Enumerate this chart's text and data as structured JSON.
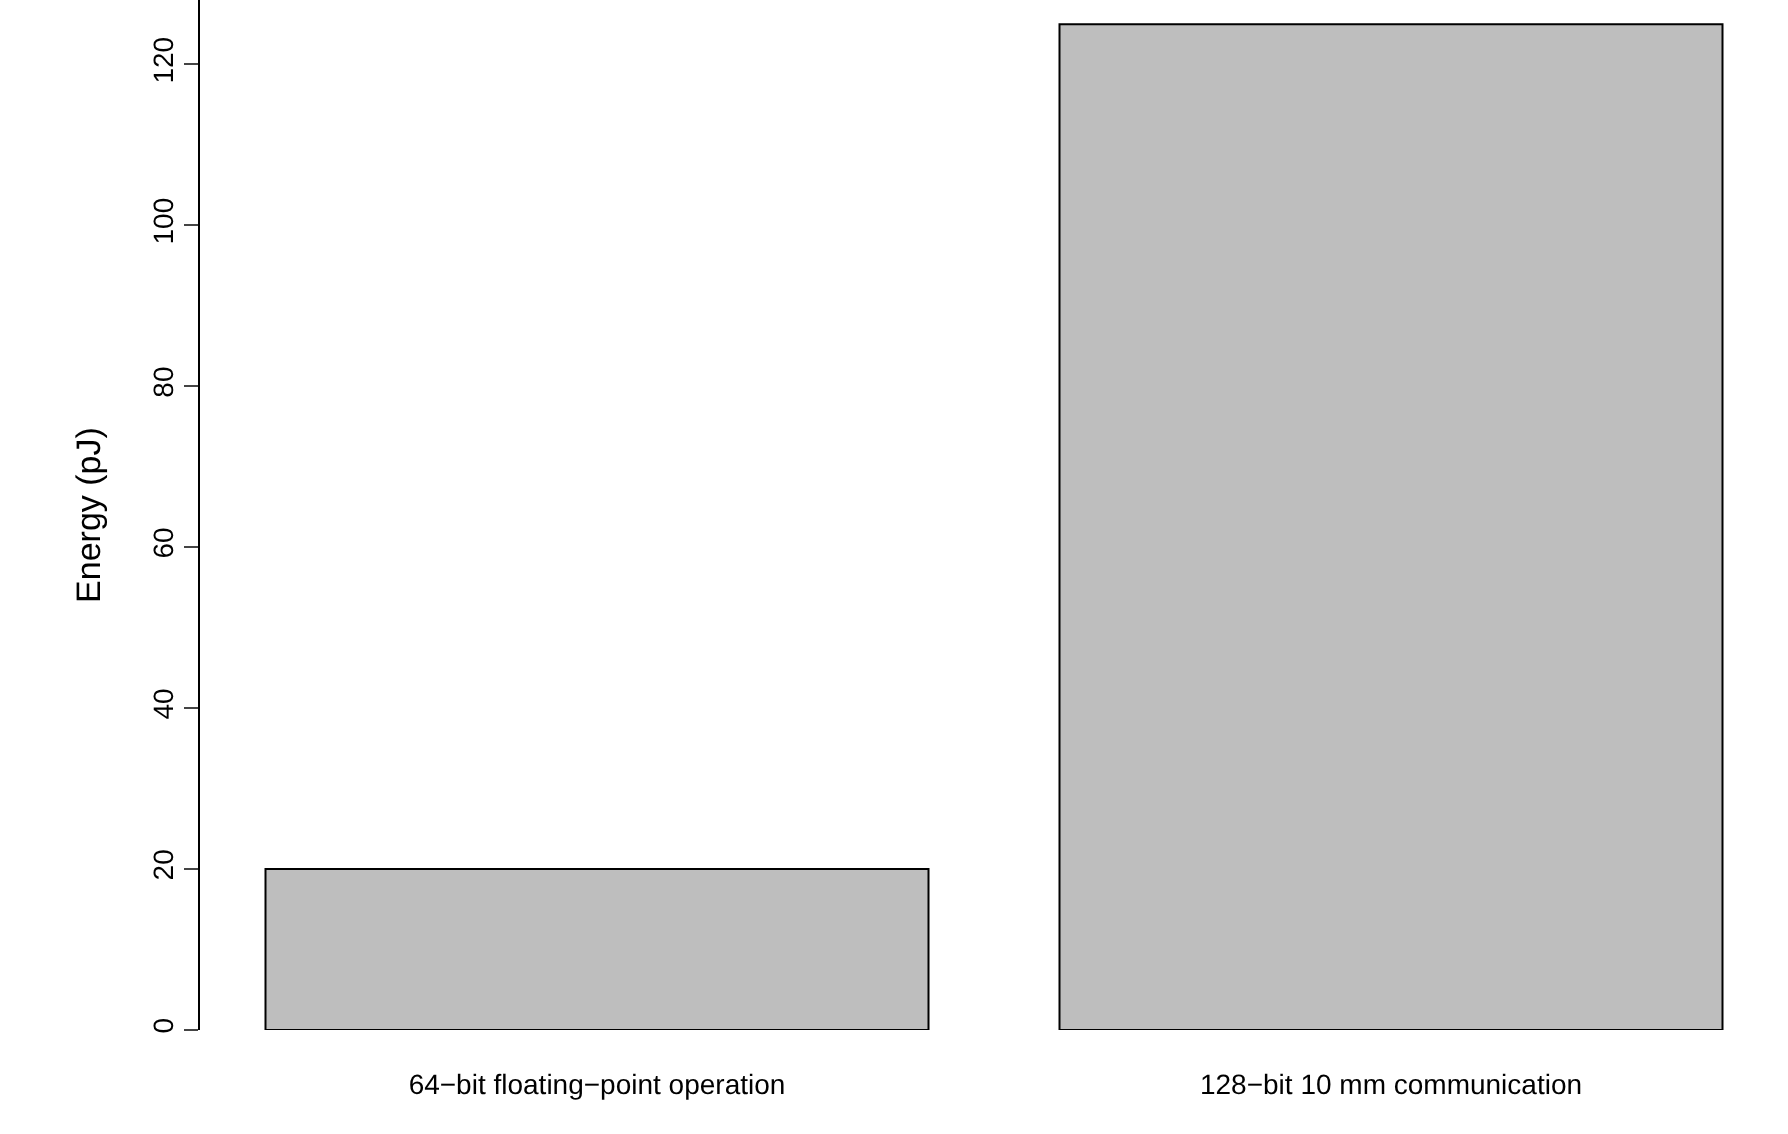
{
  "chart_data": {
    "type": "bar",
    "ylabel": "Energy (pJ)",
    "categories": [
      "64−bit floating−point operation",
      "128−bit 10 mm communication"
    ],
    "values": [
      20,
      125
    ],
    "color": "#bebebe",
    "ylim": [
      0,
      128
    ],
    "yticks": [
      0,
      20,
      40,
      60,
      80,
      100,
      120
    ]
  }
}
